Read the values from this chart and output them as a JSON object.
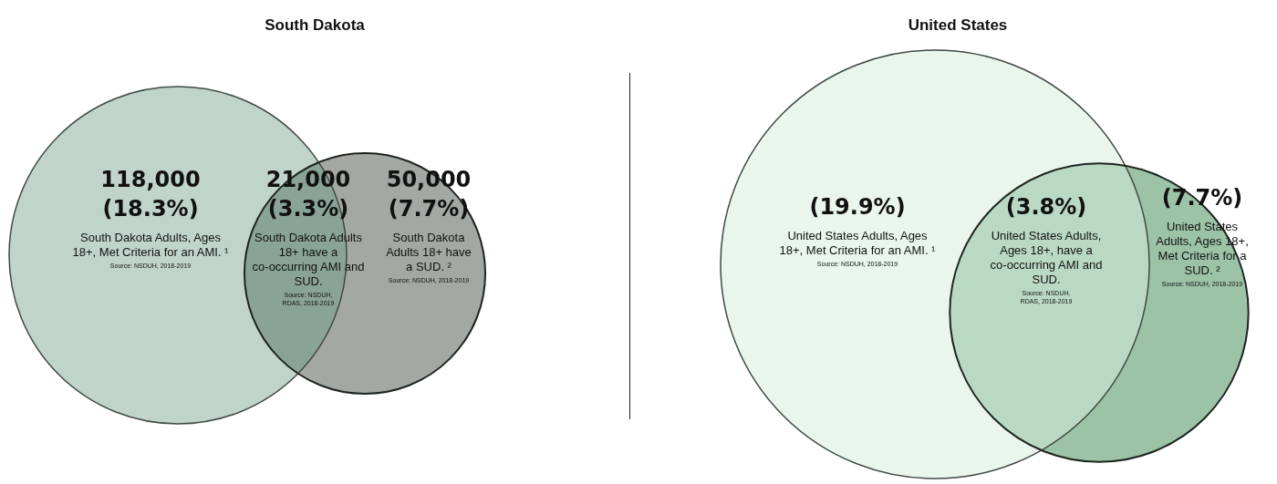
{
  "chart_data": [
    {
      "type": "other",
      "title": "South Dakota",
      "categories": [
        "South Dakota Adults, Ages 18+, Met Criteria for an AMI. ¹",
        "South Dakota Adults 18+ have a co-occurring AMI and SUD.",
        "South Dakota Adults 18+ have a SUD. ²"
      ],
      "values": [
        18.3,
        3.3,
        7.7
      ],
      "value_labels": [
        "118,000 (18.3%)",
        "21,000 (3.3%)",
        "50,000 (7.7%)"
      ],
      "colors": [
        "#c0d4cc",
        "#8aa398",
        "#a3a8a4"
      ],
      "annotations": [
        "Source: NSDUH, 2018-2019",
        "Source: NSDUH, RDAS, 2018-2019",
        "Source: NSDUH, 2018-2019"
      ]
    },
    {
      "type": "other",
      "title": "United States",
      "categories": [
        "United States Adults, Ages 18+, Met Criteria for an AMI. ¹",
        "United States Adults, Ages 18+, have a co-occurring AMI and SUD.",
        "United States Adults, Ages 18+, Met Criteria for a SUD. ²"
      ],
      "values": [
        19.9,
        3.8,
        7.7
      ],
      "value_labels": [
        "(19.9%)",
        "(3.8%)",
        "(7.7%)"
      ],
      "colors": [
        "#eaf5ec",
        "#bad9c5",
        "#9cc3a6"
      ],
      "annotations": [
        "Source: NSDUH, 2018-2019",
        "Source: NSDUH, RDAS, 2018-2019",
        "Source: NSDUH, 2018-2019"
      ]
    }
  ]
}
